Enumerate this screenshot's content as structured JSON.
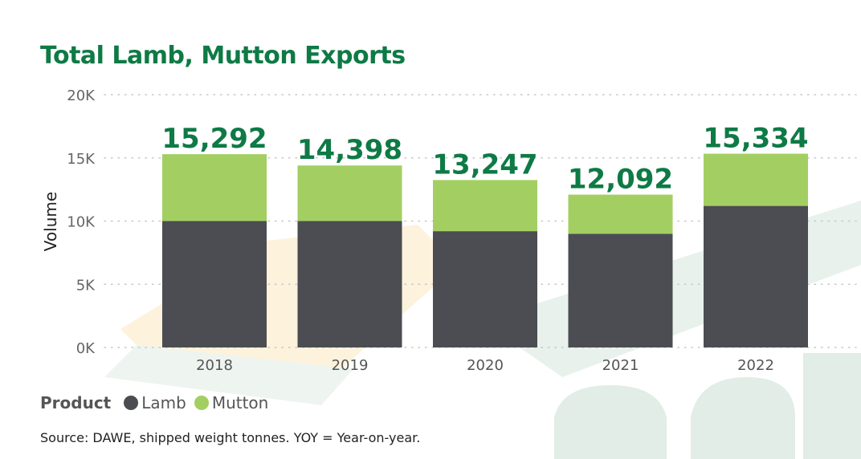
{
  "title": "Total Lamb, Mutton Exports",
  "legend": {
    "title": "Product",
    "items": [
      {
        "label": "Lamb",
        "color": "#4b4d52"
      },
      {
        "label": "Mutton",
        "color": "#a3cf62"
      }
    ]
  },
  "source": "Source: DAWE, shipped weight tonnes. YOY = Year-on-year.",
  "chart_data": {
    "type": "bar",
    "stacked": true,
    "categories": [
      "2018",
      "2019",
      "2020",
      "2021",
      "2022"
    ],
    "series": [
      {
        "name": "Lamb",
        "color": "#4b4d52",
        "values": [
          10000,
          10000,
          9200,
          9000,
          11200
        ]
      },
      {
        "name": "Mutton",
        "color": "#a3cf62",
        "values": [
          5292,
          4398,
          4047,
          3092,
          4134
        ]
      }
    ],
    "totals": [
      15292,
      14398,
      13247,
      12092,
      15334
    ],
    "total_labels": [
      "15,292",
      "14,398",
      "13,247",
      "12,092",
      "15,334"
    ],
    "ylabel": "Volume",
    "ylim": [
      0,
      20000
    ],
    "yticks": [
      0,
      5000,
      10000,
      15000,
      20000
    ],
    "ytick_labels": [
      "0K",
      "5K",
      "10K",
      "15K",
      "20K"
    ],
    "grid": true,
    "legend_position": "bottom-left"
  }
}
